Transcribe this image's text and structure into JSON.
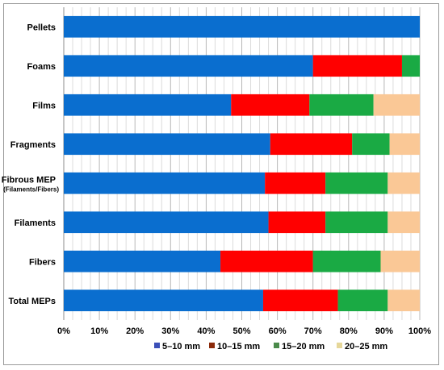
{
  "chart_data": {
    "type": "bar",
    "orientation": "horizontal",
    "stacked": true,
    "title": "",
    "xlabel": "",
    "ylabel": "",
    "xlim": [
      0,
      100
    ],
    "x_ticks": [
      "0%",
      "10%",
      "20%",
      "30%",
      "40%",
      "50%",
      "60%",
      "70%",
      "80%",
      "90%",
      "100%"
    ],
    "grid": "vertical",
    "legend_position": "bottom",
    "categories": [
      {
        "label": "Pellets",
        "sublabel": ""
      },
      {
        "label": "Foams",
        "sublabel": ""
      },
      {
        "label": "Films",
        "sublabel": ""
      },
      {
        "label": "Fragments",
        "sublabel": ""
      },
      {
        "label": "Fibrous MEP",
        "sublabel": "(Filaments/Fibers)"
      },
      {
        "label": "Filaments",
        "sublabel": ""
      },
      {
        "label": "Fibers",
        "sublabel": ""
      },
      {
        "label": "Total MEPs",
        "sublabel": ""
      }
    ],
    "segment_colors": [
      "#0a6ecf",
      "#ff0000",
      "#1aaa44",
      "#fac896"
    ],
    "segment_values": [
      [
        100,
        0,
        0,
        0
      ],
      [
        70,
        25,
        5,
        0
      ],
      [
        47,
        22,
        18,
        13
      ],
      [
        58,
        23,
        10.5,
        8.5
      ],
      [
        56.5,
        17,
        17.5,
        9
      ],
      [
        57.5,
        16,
        17.5,
        9
      ],
      [
        44,
        26,
        19,
        11
      ],
      [
        56,
        21,
        14,
        9
      ]
    ],
    "legend": [
      {
        "label": "5–10 mm",
        "color": "#3b4fb8"
      },
      {
        "label": "10–15 mm",
        "color": "#8b2a0a"
      },
      {
        "label": "15–20 mm",
        "color": "#4a8a4a"
      },
      {
        "label": "20–25 mm",
        "color": "#e6d79a"
      }
    ]
  }
}
